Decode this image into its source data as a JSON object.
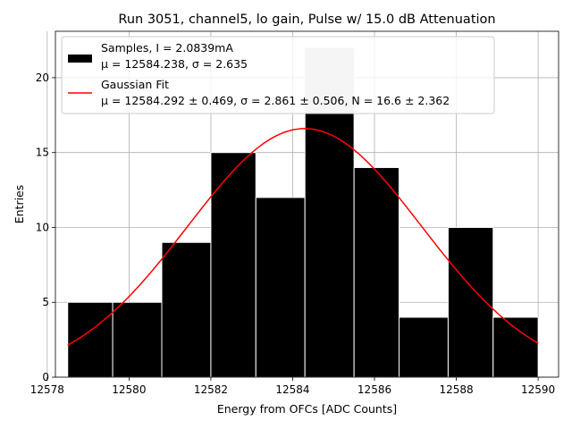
{
  "chart_data": {
    "type": "bar",
    "title": "Run 3051, channel5, lo gain, Pulse w/ 15.0 dB Attenuation",
    "xlabel": "Energy from OFCs [ADC Counts]",
    "ylabel": "Entries",
    "xlim": [
      12578.2,
      12590.5
    ],
    "ylim": [
      0,
      23.1
    ],
    "grid": true,
    "legend_position": "top-left",
    "x_ticks": [
      12578,
      12580,
      12582,
      12584,
      12586,
      12588,
      12590
    ],
    "y_ticks": [
      0,
      5,
      10,
      15,
      20
    ],
    "bins": [
      {
        "left": 12578.5,
        "right": 12579.6,
        "count": 5
      },
      {
        "left": 12579.6,
        "right": 12580.8,
        "count": 5
      },
      {
        "left": 12580.8,
        "right": 12582.0,
        "count": 9
      },
      {
        "left": 12582.0,
        "right": 12583.1,
        "count": 15
      },
      {
        "left": 12583.1,
        "right": 12584.3,
        "count": 12
      },
      {
        "left": 12584.3,
        "right": 12585.5,
        "count": 22
      },
      {
        "left": 12585.5,
        "right": 12586.6,
        "count": 14
      },
      {
        "left": 12586.6,
        "right": 12587.8,
        "count": 4
      },
      {
        "left": 12587.8,
        "right": 12588.9,
        "count": 10
      },
      {
        "left": 12588.9,
        "right": 12590.0,
        "count": 4
      }
    ],
    "fit": {
      "type": "gaussian",
      "mu": 12584.292,
      "sigma": 2.861,
      "N": 16.6,
      "x_range": [
        12578.5,
        12590.0
      ]
    },
    "series": [
      {
        "name": "Samples, I = 2.0839mA",
        "name_line2": "μ = 12584.238, σ = 2.635",
        "color": "#000000"
      },
      {
        "name": "Gaussian Fit",
        "name_line2": "μ = 12584.292 ± 0.469, σ = 2.861 ± 0.506, N = 16.6 ± 2.362",
        "color": "#ff0000"
      }
    ],
    "colors": {
      "bar_fill": "#000000",
      "bar_edge": "#ffffff",
      "bar_under_legend": "#cccccc",
      "fit_line": "#ff0000"
    }
  }
}
